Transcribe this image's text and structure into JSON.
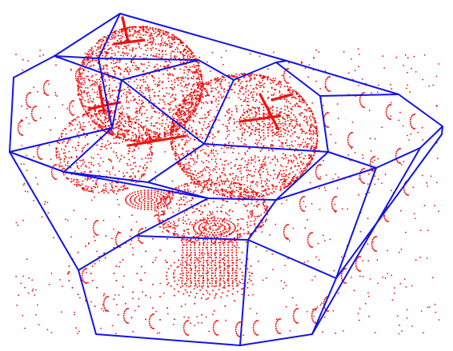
{
  "scene": {
    "colors": {
      "background": "#ffffff",
      "edges": "#1414e6",
      "points": "#ee1111"
    },
    "icons": [
      "wireframe-polyhedron",
      "point-cloud"
    ]
  }
}
